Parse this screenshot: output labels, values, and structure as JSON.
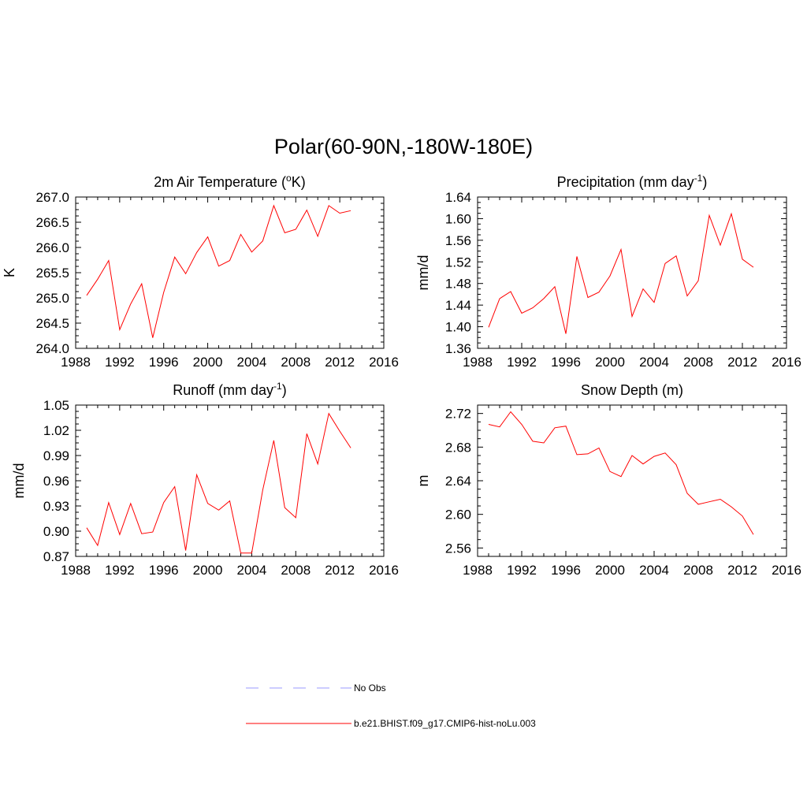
{
  "title": "Polar(60-90N,-180W-180E)",
  "chart_data": [
    {
      "type": "line",
      "title": "2m Air Temperature (",
      "title_sup": "o",
      "title_suffix": "K)",
      "title_tail": "",
      "ylabel": "K",
      "xlim": [
        1988,
        2016
      ],
      "ylim": [
        264.0,
        267.0
      ],
      "xticks": [
        1988,
        1992,
        1996,
        2000,
        2004,
        2008,
        2012,
        2016
      ],
      "yticks": [
        "264.0",
        "264.5",
        "265.0",
        "265.5",
        "266.0",
        "266.5",
        "267.0"
      ],
      "x": [
        1989,
        1990,
        1991,
        1992,
        1993,
        1994,
        1995,
        1996,
        1997,
        1998,
        1999,
        2000,
        2001,
        2002,
        2003,
        2004,
        2005,
        2006,
        2007,
        2008,
        2009,
        2010,
        2011,
        2012,
        2013
      ],
      "series": [
        {
          "color": "#ff0000",
          "values": [
            265.05,
            265.37,
            265.74,
            264.37,
            264.88,
            265.28,
            264.21,
            265.11,
            265.81,
            265.48,
            265.9,
            266.21,
            265.63,
            265.74,
            266.26,
            265.91,
            266.13,
            266.83,
            266.29,
            266.36,
            266.74,
            266.22,
            266.83,
            266.68,
            266.73
          ]
        }
      ]
    },
    {
      "type": "line",
      "title": "Precipitation (mm day",
      "title_sup": "-1",
      "title_suffix": ")",
      "title_tail": "",
      "ylabel": "mm/d",
      "xlim": [
        1988,
        2016
      ],
      "ylim": [
        1.36,
        1.64
      ],
      "xticks": [
        1988,
        1992,
        1996,
        2000,
        2004,
        2008,
        2012,
        2016
      ],
      "yticks": [
        "1.36",
        "1.40",
        "1.44",
        "1.48",
        "1.52",
        "1.56",
        "1.60",
        "1.64"
      ],
      "x": [
        1989,
        1990,
        1991,
        1992,
        1993,
        1994,
        1995,
        1996,
        1997,
        1998,
        1999,
        2000,
        2001,
        2002,
        2003,
        2004,
        2005,
        2006,
        2007,
        2008,
        2009,
        2010,
        2011,
        2012,
        2013
      ],
      "series": [
        {
          "color": "#ff0000",
          "values": [
            1.399,
            1.452,
            1.465,
            1.425,
            1.435,
            1.452,
            1.474,
            1.387,
            1.53,
            1.454,
            1.464,
            1.494,
            1.543,
            1.419,
            1.47,
            1.445,
            1.517,
            1.531,
            1.457,
            1.485,
            1.606,
            1.551,
            1.609,
            1.525,
            1.51
          ]
        }
      ]
    },
    {
      "type": "line",
      "title": "Runoff (mm day",
      "title_sup": "-1",
      "title_suffix": ")",
      "title_tail": "",
      "ylabel": "mm/d",
      "xlim": [
        1988,
        2016
      ],
      "ylim": [
        0.87,
        1.05
      ],
      "xticks": [
        1988,
        1992,
        1996,
        2000,
        2004,
        2008,
        2012,
        2016
      ],
      "yticks": [
        "0.87",
        "0.90",
        "0.93",
        "0.96",
        "0.99",
        "1.02",
        "1.05"
      ],
      "x": [
        1989,
        1990,
        1991,
        1992,
        1993,
        1994,
        1995,
        1996,
        1997,
        1998,
        1999,
        2000,
        2001,
        2002,
        2003,
        2004,
        2005,
        2006,
        2007,
        2008,
        2009,
        2010,
        2011,
        2012,
        2013
      ],
      "series": [
        {
          "color": "#ff0000",
          "values": [
            0.904,
            0.883,
            0.934,
            0.896,
            0.933,
            0.897,
            0.899,
            0.934,
            0.953,
            0.877,
            0.967,
            0.933,
            0.925,
            0.936,
            0.874,
            0.874,
            0.949,
            1.008,
            0.928,
            0.916,
            1.016,
            0.98,
            1.04,
            1.019,
            0.999
          ]
        }
      ]
    },
    {
      "type": "line",
      "title": "Snow Depth (m)",
      "title_sup": "",
      "title_suffix": "",
      "title_tail": "",
      "ylabel": "m",
      "xlim": [
        1988,
        2016
      ],
      "ylim": [
        2.55,
        2.73
      ],
      "xticks": [
        1988,
        1992,
        1996,
        2000,
        2004,
        2008,
        2012,
        2016
      ],
      "yticks": [
        "2.56",
        "2.60",
        "2.64",
        "2.68",
        "2.72"
      ],
      "x": [
        1989,
        1990,
        1991,
        1992,
        1993,
        1994,
        1995,
        1996,
        1997,
        1998,
        1999,
        2000,
        2001,
        2002,
        2003,
        2004,
        2005,
        2006,
        2007,
        2008,
        2009,
        2010,
        2011,
        2012,
        2013
      ],
      "series": [
        {
          "color": "#ff0000",
          "values": [
            2.707,
            2.704,
            2.722,
            2.707,
            2.687,
            2.685,
            2.703,
            2.705,
            2.671,
            2.672,
            2.679,
            2.651,
            2.645,
            2.67,
            2.66,
            2.669,
            2.673,
            2.659,
            2.625,
            2.612,
            2.615,
            2.618,
            2.609,
            2.598,
            2.576
          ]
        }
      ]
    }
  ],
  "legend": [
    {
      "label": "No Obs",
      "color": "#9999ff",
      "style": "dashed"
    },
    {
      "label": "b.e21.BHIST.f09_g17.CMIP6-hist-noLu.003",
      "color": "#ff0000",
      "style": "solid"
    }
  ]
}
